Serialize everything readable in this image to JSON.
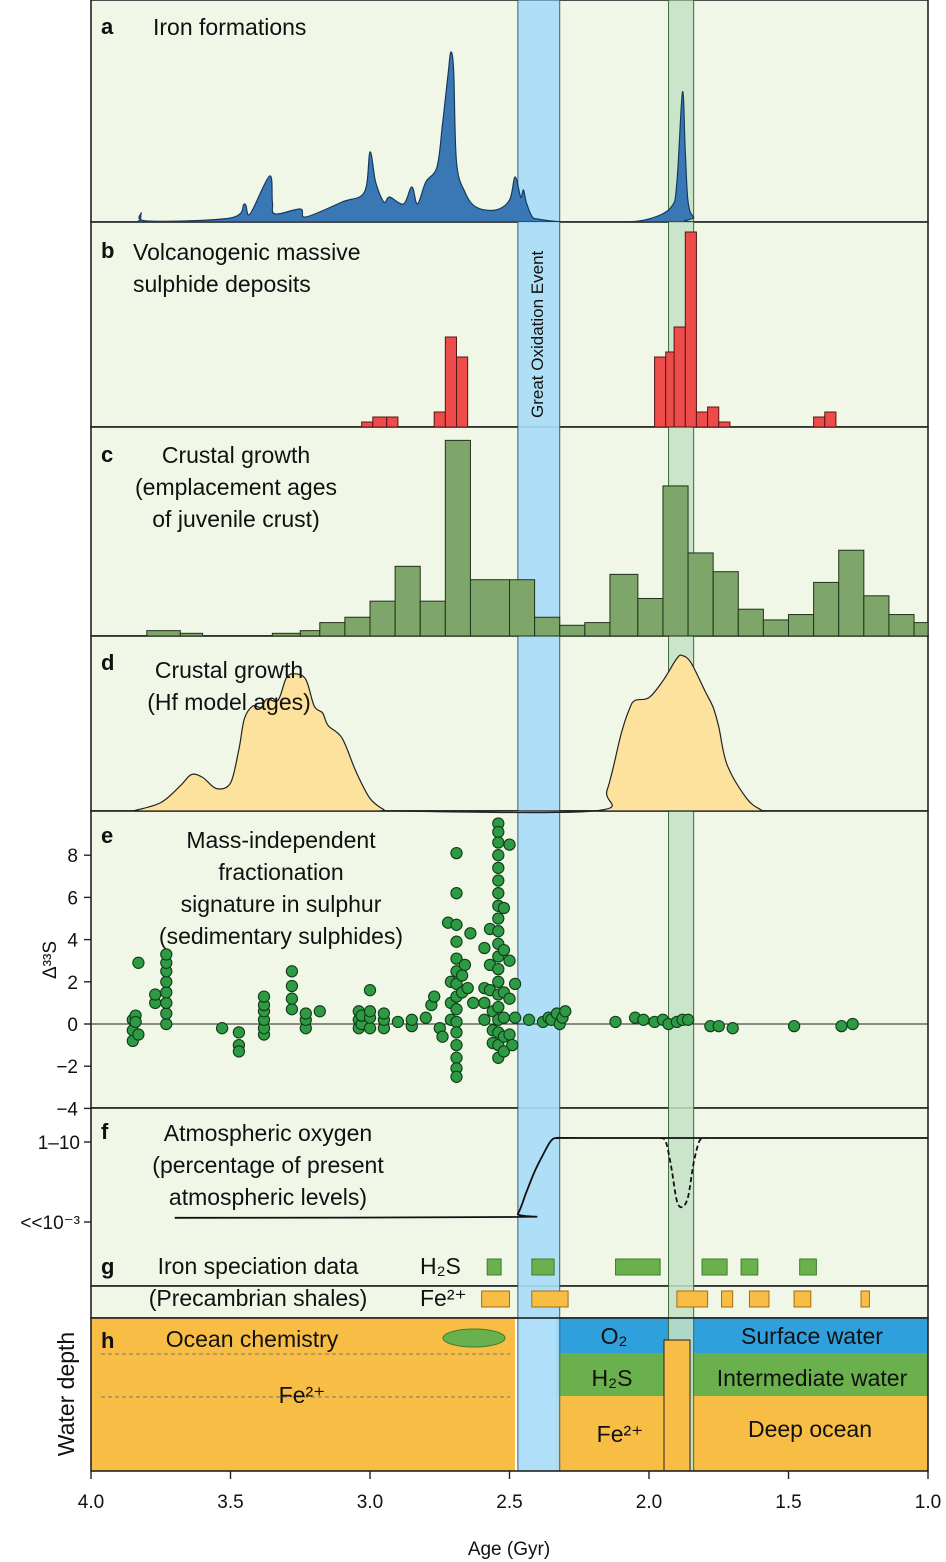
{
  "colors": {
    "panel_bg": "#f1f7e7",
    "iron": "#3a78b5",
    "vms": "#ee4b4b",
    "crust": "#7ea56a",
    "hf": "#fde29e",
    "dots": "#2e9a43",
    "goe_band": "#a9dcf8",
    "green_band": "#c4e2c4",
    "fe2": "#f8bd45",
    "h2s": "#6ab04c",
    "o2": "#2fa0dc"
  },
  "axis": {
    "xlabel": "Age (Gyr)",
    "ticks": [
      "4.0",
      "3.5",
      "3.0",
      "2.5",
      "2.0",
      "1.5",
      "1.0"
    ],
    "range": [
      4.0,
      1.0
    ]
  },
  "bands": {
    "goe": [
      2.47,
      2.32
    ],
    "green": [
      1.93,
      1.84
    ],
    "goe_label": "Great Oxidation Event"
  },
  "panels": {
    "a": {
      "letter": "a",
      "title": "Iron formations"
    },
    "b": {
      "letter": "b",
      "title1": "Volcanogenic massive",
      "title2": "sulphide deposits"
    },
    "c": {
      "letter": "c",
      "title1": "Crustal growth",
      "title2": "(emplacement ages",
      "title3": "of juvenile crust)"
    },
    "d": {
      "letter": "d",
      "title1": "Crustal growth",
      "title2": "(Hf model ages)"
    },
    "e": {
      "letter": "e",
      "title1": "Mass-independent",
      "title2": "fractionation",
      "title3": "signature in sulphur",
      "title4": "(sedimentary sulphides)",
      "ylabel": "Δ³³S",
      "yticks": [
        "8",
        "6",
        "4",
        "2",
        "0",
        "−2",
        "−4"
      ]
    },
    "f": {
      "letter": "f",
      "title1": "Atmospheric oxygen",
      "title2": "(percentage of present",
      "title3": "atmospheric levels)",
      "ytick_high": "1–10",
      "ytick_low": "<<10⁻³"
    },
    "g": {
      "letter": "g",
      "title1": "Iron speciation data",
      "title2": "(Precambrian shales)",
      "h2s": "H₂S",
      "fe2": "Fe²⁺"
    },
    "h": {
      "letter": "h",
      "title": "Ocean chemistry",
      "ylabel": "Water depth",
      "fe2_left": "Fe²⁺",
      "o2": "O₂",
      "h2s": "H₂S",
      "fe2_mid": "Fe²⁺",
      "surface": "Surface water",
      "intermediate": "Intermediate water",
      "deep": "Deep ocean"
    }
  },
  "chart_data": [
    {
      "panel": "a",
      "type": "area",
      "title": "Iron formations",
      "x": [
        4.0,
        3.84,
        3.82,
        3.8,
        3.5,
        3.45,
        3.43,
        3.36,
        3.35,
        3.34,
        3.25,
        3.23,
        3.1,
        3.02,
        3.0,
        2.98,
        2.95,
        2.93,
        2.88,
        2.85,
        2.83,
        2.8,
        2.76,
        2.74,
        2.72,
        2.71,
        2.7,
        2.69,
        2.66,
        2.62,
        2.55,
        2.5,
        2.48,
        2.46,
        2.45,
        2.44,
        2.42,
        2.4,
        2.3,
        2.1,
        2.0,
        1.92,
        1.9,
        1.88,
        1.87,
        1.86,
        1.84,
        1.8,
        1.0
      ],
      "y": [
        0,
        0,
        9,
        1,
        4,
        18,
        8,
        46,
        20,
        8,
        13,
        5,
        20,
        30,
        70,
        40,
        20,
        25,
        18,
        35,
        18,
        40,
        55,
        98,
        148,
        170,
        150,
        60,
        30,
        15,
        12,
        22,
        45,
        25,
        32,
        20,
        6,
        3,
        0,
        0,
        3,
        15,
        40,
        130,
        70,
        20,
        5,
        0,
        0
      ]
    },
    {
      "panel": "b",
      "type": "bar",
      "bars": [
        {
          "x0": 3.03,
          "x1": 2.99,
          "y": 1
        },
        {
          "x0": 2.99,
          "x1": 2.94,
          "y": 2
        },
        {
          "x0": 2.94,
          "x1": 2.9,
          "y": 2
        },
        {
          "x0": 2.77,
          "x1": 2.73,
          "y": 3
        },
        {
          "x0": 2.73,
          "x1": 2.69,
          "y": 18
        },
        {
          "x0": 2.69,
          "x1": 2.65,
          "y": 14
        },
        {
          "x0": 1.98,
          "x1": 1.94,
          "y": 14
        },
        {
          "x0": 1.94,
          "x1": 1.91,
          "y": 15
        },
        {
          "x0": 1.91,
          "x1": 1.87,
          "y": 20
        },
        {
          "x0": 1.87,
          "x1": 1.83,
          "y": 39
        },
        {
          "x0": 1.83,
          "x1": 1.79,
          "y": 3
        },
        {
          "x0": 1.79,
          "x1": 1.75,
          "y": 4
        },
        {
          "x0": 1.75,
          "x1": 1.71,
          "y": 1
        },
        {
          "x0": 1.41,
          "x1": 1.37,
          "y": 2
        },
        {
          "x0": 1.37,
          "x1": 1.33,
          "y": 3
        }
      ]
    },
    {
      "panel": "c",
      "type": "bar",
      "bars": [
        {
          "x0": 3.8,
          "x1": 3.68,
          "y": 2
        },
        {
          "x0": 3.68,
          "x1": 3.6,
          "y": 1
        },
        {
          "x0": 3.35,
          "x1": 3.25,
          "y": 1
        },
        {
          "x0": 3.25,
          "x1": 3.18,
          "y": 2
        },
        {
          "x0": 3.18,
          "x1": 3.09,
          "y": 5
        },
        {
          "x0": 3.09,
          "x1": 3.0,
          "y": 7
        },
        {
          "x0": 3.0,
          "x1": 2.91,
          "y": 13
        },
        {
          "x0": 2.91,
          "x1": 2.82,
          "y": 26
        },
        {
          "x0": 2.82,
          "x1": 2.73,
          "y": 13
        },
        {
          "x0": 2.73,
          "x1": 2.64,
          "y": 73
        },
        {
          "x0": 2.64,
          "x1": 2.5,
          "y": 21
        },
        {
          "x0": 2.5,
          "x1": 2.41,
          "y": 21
        },
        {
          "x0": 2.41,
          "x1": 2.32,
          "y": 7
        },
        {
          "x0": 2.32,
          "x1": 2.23,
          "y": 4
        },
        {
          "x0": 2.23,
          "x1": 2.14,
          "y": 5
        },
        {
          "x0": 2.14,
          "x1": 2.04,
          "y": 23
        },
        {
          "x0": 2.04,
          "x1": 1.95,
          "y": 14
        },
        {
          "x0": 1.95,
          "x1": 1.86,
          "y": 56
        },
        {
          "x0": 1.86,
          "x1": 1.77,
          "y": 31
        },
        {
          "x0": 1.77,
          "x1": 1.68,
          "y": 24
        },
        {
          "x0": 1.68,
          "x1": 1.59,
          "y": 10
        },
        {
          "x0": 1.59,
          "x1": 1.5,
          "y": 6
        },
        {
          "x0": 1.5,
          "x1": 1.41,
          "y": 8
        },
        {
          "x0": 1.41,
          "x1": 1.32,
          "y": 20
        },
        {
          "x0": 1.32,
          "x1": 1.23,
          "y": 32
        },
        {
          "x0": 1.23,
          "x1": 1.14,
          "y": 15
        },
        {
          "x0": 1.14,
          "x1": 1.05,
          "y": 8
        },
        {
          "x0": 1.05,
          "x1": 1.0,
          "y": 5
        }
      ]
    },
    {
      "panel": "d",
      "type": "area",
      "x": [
        3.85,
        3.75,
        3.68,
        3.64,
        3.6,
        3.55,
        3.5,
        3.47,
        3.45,
        3.42,
        3.39,
        3.37,
        3.33,
        3.3,
        3.27,
        3.23,
        3.2,
        3.17,
        3.15,
        3.1,
        3.05,
        3.0,
        2.95,
        2.92,
        2.2,
        2.15,
        2.1,
        2.07,
        2.05,
        2.0,
        1.95,
        1.9,
        1.88,
        1.85,
        1.8,
        1.77,
        1.75,
        1.72,
        1.65,
        1.6,
        1.58
      ],
      "y": [
        0,
        6,
        18,
        26,
        24,
        16,
        20,
        44,
        66,
        75,
        74,
        80,
        79,
        95,
        98,
        94,
        75,
        70,
        61,
        52,
        28,
        9,
        1,
        0,
        0,
        15,
        55,
        73,
        79,
        81,
        93,
        109,
        111,
        106,
        86,
        74,
        60,
        33,
        9,
        1,
        0
      ]
    },
    {
      "panel": "e",
      "type": "scatter",
      "ylabel": "Δ³³S",
      "ylim": [
        -4.7,
        9.7
      ],
      "points": [
        [
          3.85,
          0.2
        ],
        [
          3.85,
          -0.3
        ],
        [
          3.85,
          -0.8
        ],
        [
          3.84,
          0.4
        ],
        [
          3.84,
          0.1
        ],
        [
          3.83,
          2.9
        ],
        [
          3.83,
          -0.5
        ],
        [
          3.77,
          1.0
        ],
        [
          3.77,
          1.4
        ],
        [
          3.73,
          0.0
        ],
        [
          3.73,
          0.5
        ],
        [
          3.73,
          1.0
        ],
        [
          3.73,
          1.5
        ],
        [
          3.73,
          2.0
        ],
        [
          3.73,
          2.5
        ],
        [
          3.73,
          2.9
        ],
        [
          3.73,
          3.3
        ],
        [
          3.53,
          -0.2
        ],
        [
          3.47,
          -0.4
        ],
        [
          3.47,
          -1.0
        ],
        [
          3.47,
          -1.3
        ],
        [
          3.38,
          -0.5
        ],
        [
          3.38,
          -0.2
        ],
        [
          3.38,
          0.2
        ],
        [
          3.38,
          0.6
        ],
        [
          3.38,
          0.9
        ],
        [
          3.38,
          1.3
        ],
        [
          3.28,
          0.7
        ],
        [
          3.28,
          1.2
        ],
        [
          3.28,
          1.8
        ],
        [
          3.28,
          2.5
        ],
        [
          3.23,
          -0.2
        ],
        [
          3.23,
          0.2
        ],
        [
          3.23,
          0.5
        ],
        [
          3.18,
          0.6
        ],
        [
          3.04,
          -0.2
        ],
        [
          3.04,
          0.2
        ],
        [
          3.04,
          0.6
        ],
        [
          3.03,
          0.0
        ],
        [
          3.03,
          0.4
        ],
        [
          3.0,
          -0.2
        ],
        [
          3.0,
          0.3
        ],
        [
          3.0,
          0.6
        ],
        [
          3.0,
          1.6
        ],
        [
          2.95,
          -0.2
        ],
        [
          2.95,
          0.2
        ],
        [
          2.95,
          0.5
        ],
        [
          2.9,
          0.1
        ],
        [
          2.85,
          -0.1
        ],
        [
          2.85,
          0.2
        ],
        [
          2.8,
          0.3
        ],
        [
          2.78,
          0.9
        ],
        [
          2.77,
          1.3
        ],
        [
          2.75,
          -0.2
        ],
        [
          2.74,
          -0.6
        ],
        [
          2.72,
          4.8
        ],
        [
          2.71,
          2.0
        ],
        [
          2.71,
          1.0
        ],
        [
          2.71,
          0.2
        ],
        [
          2.69,
          8.1
        ],
        [
          2.69,
          6.2
        ],
        [
          2.69,
          4.7
        ],
        [
          2.69,
          3.9
        ],
        [
          2.69,
          3.1
        ],
        [
          2.69,
          2.5
        ],
        [
          2.69,
          1.9
        ],
        [
          2.69,
          1.3
        ],
        [
          2.69,
          0.7
        ],
        [
          2.69,
          0.1
        ],
        [
          2.69,
          -0.4
        ],
        [
          2.69,
          -1.0
        ],
        [
          2.69,
          -1.6
        ],
        [
          2.69,
          -2.1
        ],
        [
          2.69,
          -2.5
        ],
        [
          2.67,
          2.3
        ],
        [
          2.67,
          1.5
        ],
        [
          2.66,
          2.8
        ],
        [
          2.65,
          1.7
        ],
        [
          2.64,
          4.3
        ],
        [
          2.63,
          1.0
        ],
        [
          2.59,
          3.6
        ],
        [
          2.59,
          1.7
        ],
        [
          2.59,
          1.0
        ],
        [
          2.59,
          0.2
        ],
        [
          2.57,
          4.5
        ],
        [
          2.57,
          2.8
        ],
        [
          2.57,
          1.6
        ],
        [
          2.56,
          0.6
        ],
        [
          2.56,
          -0.3
        ],
        [
          2.56,
          -0.9
        ],
        [
          2.54,
          9.5
        ],
        [
          2.54,
          9.1
        ],
        [
          2.54,
          8.6
        ],
        [
          2.54,
          8.0
        ],
        [
          2.54,
          7.4
        ],
        [
          2.54,
          6.8
        ],
        [
          2.54,
          6.2
        ],
        [
          2.54,
          5.6
        ],
        [
          2.54,
          5.0
        ],
        [
          2.54,
          4.4
        ],
        [
          2.54,
          3.8
        ],
        [
          2.54,
          3.2
        ],
        [
          2.54,
          2.6
        ],
        [
          2.54,
          2.0
        ],
        [
          2.54,
          1.4
        ],
        [
          2.54,
          0.8
        ],
        [
          2.54,
          0.2
        ],
        [
          2.54,
          -0.4
        ],
        [
          2.54,
          -1.0
        ],
        [
          2.54,
          -1.6
        ],
        [
          2.52,
          5.5
        ],
        [
          2.52,
          3.5
        ],
        [
          2.52,
          1.5
        ],
        [
          2.52,
          0.3
        ],
        [
          2.52,
          -0.6
        ],
        [
          2.52,
          -1.3
        ],
        [
          2.5,
          8.5
        ],
        [
          2.5,
          3.0
        ],
        [
          2.5,
          1.2
        ],
        [
          2.5,
          -0.5
        ],
        [
          2.49,
          -1.0
        ],
        [
          2.48,
          1.9
        ],
        [
          2.48,
          0.3
        ],
        [
          2.43,
          0.2
        ],
        [
          2.38,
          0.1
        ],
        [
          2.36,
          0.3
        ],
        [
          2.35,
          0.2
        ],
        [
          2.33,
          0.5
        ],
        [
          2.32,
          0.0
        ],
        [
          2.31,
          0.3
        ],
        [
          2.3,
          0.6
        ],
        [
          2.12,
          0.1
        ],
        [
          2.05,
          0.3
        ],
        [
          2.02,
          0.2
        ],
        [
          1.98,
          0.1
        ],
        [
          1.95,
          0.2
        ],
        [
          1.93,
          0.0
        ],
        [
          1.9,
          0.1
        ],
        [
          1.88,
          0.2
        ],
        [
          1.86,
          0.2
        ],
        [
          1.78,
          -0.1
        ],
        [
          1.75,
          -0.1
        ],
        [
          1.7,
          -0.2
        ],
        [
          1.48,
          -0.1
        ],
        [
          1.31,
          -0.1
        ],
        [
          1.27,
          0.0
        ]
      ]
    },
    {
      "panel": "f",
      "type": "line",
      "x": [
        3.7,
        2.5,
        2.47,
        2.44,
        2.41,
        2.38,
        2.35,
        2.32,
        2.2,
        1.0
      ],
      "y": [
        0.05,
        0.06,
        0.1,
        0.35,
        0.6,
        0.8,
        0.97,
        1.0,
        1.0,
        1.0
      ],
      "dip_x": [
        1.96,
        1.94,
        1.92,
        1.9,
        1.88,
        1.86,
        1.84,
        1.82,
        1.8
      ],
      "dip_y": [
        1.0,
        0.96,
        0.65,
        0.25,
        0.18,
        0.3,
        0.7,
        0.96,
        1.0
      ]
    },
    {
      "panel": "g",
      "type": "table",
      "h2s": [
        [
          2.58,
          2.53
        ],
        [
          2.42,
          2.34
        ],
        [
          2.12,
          1.96
        ],
        [
          1.81,
          1.72
        ],
        [
          1.67,
          1.61
        ],
        [
          1.46,
          1.4
        ]
      ],
      "fe2": [
        [
          2.6,
          2.5
        ],
        [
          2.42,
          2.29
        ],
        [
          1.9,
          1.79
        ],
        [
          1.74,
          1.7
        ],
        [
          1.64,
          1.57
        ],
        [
          1.48,
          1.42
        ],
        [
          1.24,
          1.21
        ]
      ]
    }
  ]
}
